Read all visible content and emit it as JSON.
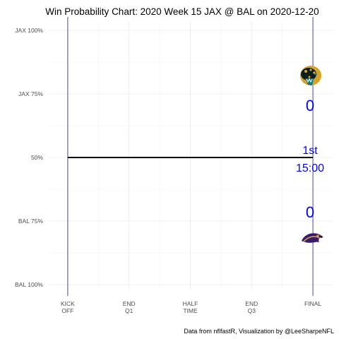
{
  "chart_data": {
    "type": "line",
    "title": "Win Probability Chart: 2020 Week 15 JAX @ BAL on 2020-12-20",
    "xlabel": "",
    "ylabel": "",
    "y_ticks": [
      {
        "value": 1.0,
        "label": "JAX 100%"
      },
      {
        "value": 0.75,
        "label": "JAX 75%"
      },
      {
        "value": 0.5,
        "label": "50%"
      },
      {
        "value": 0.25,
        "label": "BAL 75%"
      },
      {
        "value": 0.0,
        "label": "BAL 100%"
      }
    ],
    "x_ticks": [
      {
        "value": 0,
        "lines": [
          "KICK",
          "OFF"
        ]
      },
      {
        "value": 15,
        "lines": [
          "END",
          "Q1"
        ]
      },
      {
        "value": 30,
        "lines": [
          "HALF",
          "TIME"
        ]
      },
      {
        "value": 45,
        "lines": [
          "END",
          "Q3"
        ]
      },
      {
        "value": 60,
        "lines": [
          "FINAL"
        ]
      }
    ],
    "xlim": [
      -5,
      65
    ],
    "ylim": [
      0,
      1
    ],
    "series": [
      {
        "x": [
          0,
          60
        ],
        "y": [
          0.5,
          0.5
        ]
      }
    ],
    "grid": true,
    "legend": "none",
    "annotations": {
      "away_score": "0",
      "home_score": "0",
      "quarter": "1st",
      "clock": "15:00"
    },
    "caption": "Data from nflfastR, Visualization by @LeeSharpeNFL",
    "colors": {
      "text_accent": "#0000ff",
      "marker_line": "#1a1a8c",
      "wp_line": "#000000",
      "grid": "#ebebeb"
    },
    "logos": {
      "away": "jaguar-logo-icon",
      "home": "raven-logo-icon"
    }
  }
}
